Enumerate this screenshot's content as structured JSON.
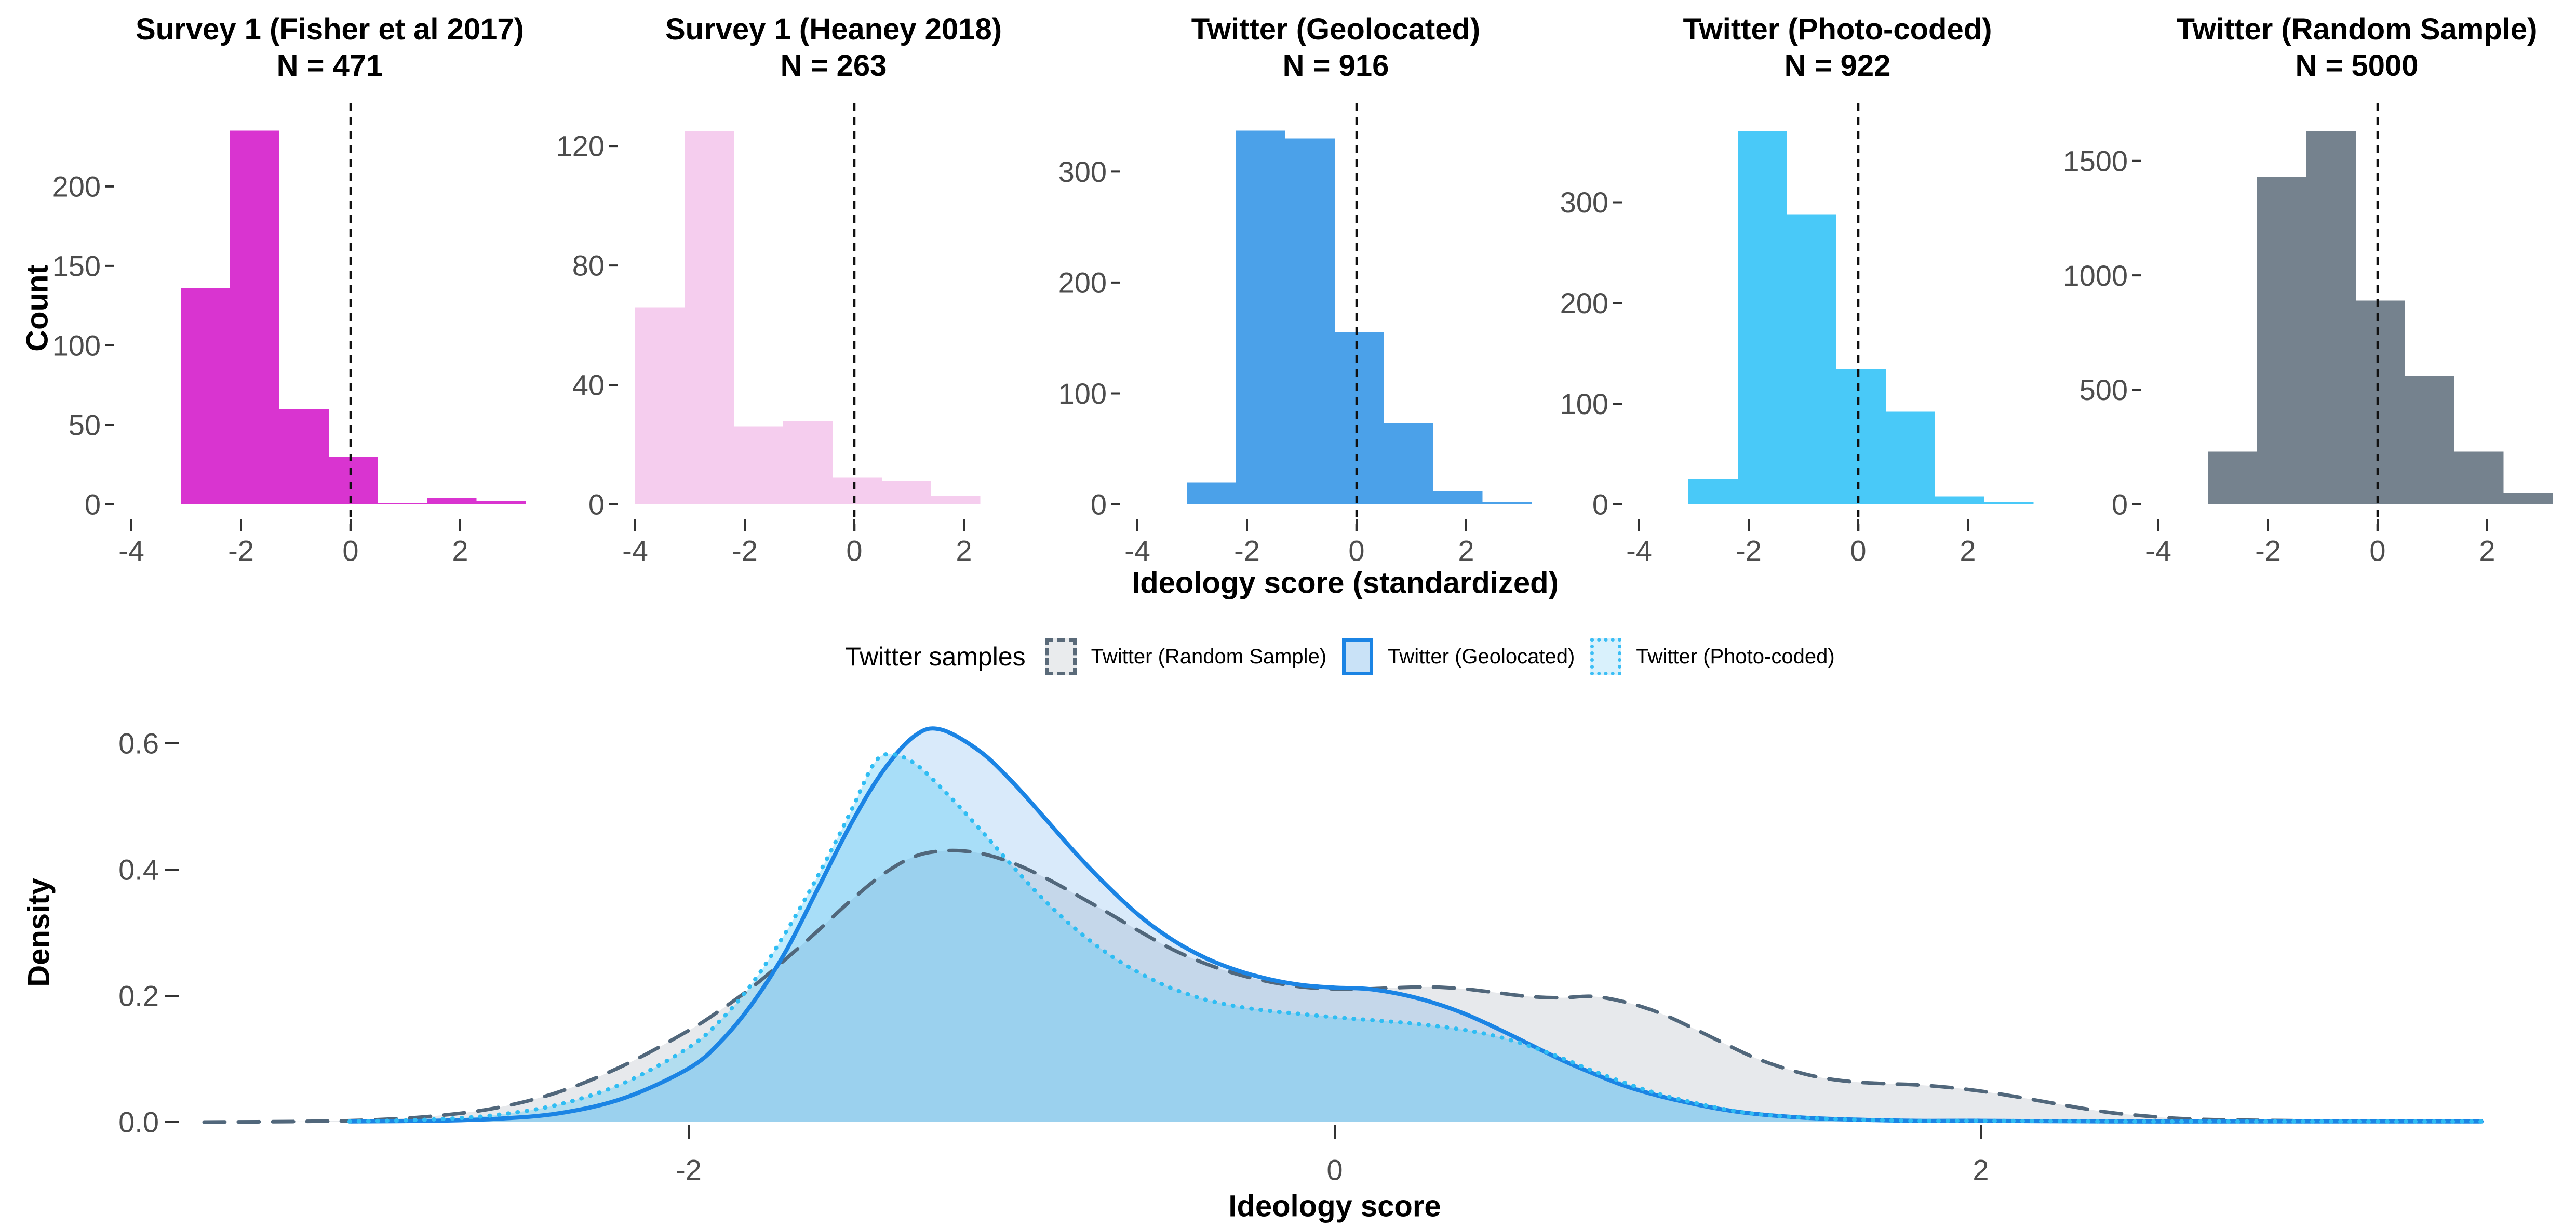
{
  "legend": {
    "title": "Twitter samples",
    "items": [
      {
        "label": "Twitter (Random Sample)",
        "stroke": "#5A6A79",
        "fill": "#E9EBED",
        "border_style": "dashed"
      },
      {
        "label": "Twitter (Geolocated)",
        "stroke": "#1B84E4",
        "fill": "#C9E2F7",
        "border_style": "solid"
      },
      {
        "label": "Twitter (Photo-coded)",
        "stroke": "#3BBEF5",
        "fill": "#D9F1FC",
        "border_style": "dotted"
      }
    ]
  },
  "chart_data": [
    {
      "type": "bar",
      "ylabel": "Count",
      "xlabel": "Ideology score (standardized)",
      "x_ticks": [
        -4,
        -2,
        0,
        2
      ],
      "vline_x": 0,
      "vline_color": "#111111",
      "panels": [
        {
          "title": "Survey 1 (Fisher et al 2017)",
          "n_label": "N = 471",
          "color": "#D934D0",
          "y_ticks": [
            0,
            50,
            100,
            150,
            200
          ],
          "ymax": 247,
          "bin_edges": [
            -3.1,
            -2.2,
            -1.3,
            -0.4,
            0.5,
            1.4,
            2.3,
            3.2
          ],
          "heights": [
            136,
            235,
            60,
            30,
            1,
            4,
            2
          ]
        },
        {
          "title": "Survey 1 (Heaney 2018)",
          "n_label": "N = 263",
          "color": "#F5CDEE",
          "y_ticks": [
            0,
            40,
            80,
            120
          ],
          "ymax": 131.5,
          "bin_edges": [
            -4.0,
            -3.1,
            -2.2,
            -1.3,
            -0.4,
            0.5,
            1.4,
            2.3
          ],
          "heights": [
            66,
            125,
            26,
            28,
            9,
            8,
            3
          ]
        },
        {
          "title": "Twitter (Geolocated)",
          "n_label": "N = 916",
          "color": "#4BA1E9",
          "y_ticks": [
            0,
            100,
            200,
            300
          ],
          "ymax": 354,
          "bin_edges": [
            -3.1,
            -2.2,
            -1.3,
            -0.4,
            0.5,
            1.4,
            2.3,
            3.2
          ],
          "heights": [
            20,
            337,
            330,
            155,
            73,
            12,
            2
          ]
        },
        {
          "title": "Twitter (Photo-coded)",
          "n_label": "N = 922",
          "color": "#49C9F8",
          "y_ticks": [
            0,
            100,
            200,
            300
          ],
          "ymax": 390,
          "bin_edges": [
            -3.1,
            -2.2,
            -1.3,
            -0.4,
            0.5,
            1.4,
            2.3,
            3.2
          ],
          "heights": [
            25,
            371,
            288,
            134,
            92,
            8,
            2
          ]
        },
        {
          "title": "Twitter (Random Sample)",
          "n_label": "N = 5000",
          "color": "#75828E",
          "y_ticks": [
            0,
            500,
            1000,
            1500
          ],
          "ymax": 1715,
          "bin_edges": [
            -3.1,
            -2.2,
            -1.3,
            -0.4,
            0.5,
            1.4,
            2.3,
            3.2
          ],
          "heights": [
            230,
            1430,
            1630,
            890,
            560,
            230,
            50
          ]
        }
      ]
    },
    {
      "type": "area",
      "ylabel": "Density",
      "xlabel": "Ideology score",
      "x_ticks": [
        -2,
        0,
        2
      ],
      "y_ticks": [
        0.0,
        0.2,
        0.4,
        0.6
      ],
      "xlim": [
        -3.9,
        3.85
      ],
      "ylim": [
        0,
        0.63
      ],
      "legend_position": "top",
      "grid": false,
      "series": [
        {
          "name": "Twitter (Random Sample)",
          "stroke": "#51677B",
          "fill": "rgba(105,120,135,0.16)",
          "dash": "40 26",
          "linewidth": 7,
          "points": [
            [
              -3.5,
              0.0
            ],
            [
              -3.2,
              0.001
            ],
            [
              -3.0,
              0.003
            ],
            [
              -2.8,
              0.009
            ],
            [
              -2.6,
              0.022
            ],
            [
              -2.4,
              0.048
            ],
            [
              -2.2,
              0.09
            ],
            [
              -2.0,
              0.145
            ],
            [
              -1.9,
              0.178
            ],
            [
              -1.8,
              0.215
            ],
            [
              -1.7,
              0.258
            ],
            [
              -1.6,
              0.303
            ],
            [
              -1.5,
              0.35
            ],
            [
              -1.4,
              0.392
            ],
            [
              -1.3,
              0.421
            ],
            [
              -1.2,
              0.43
            ],
            [
              -1.1,
              0.426
            ],
            [
              -1.0,
              0.411
            ],
            [
              -0.9,
              0.388
            ],
            [
              -0.8,
              0.36
            ],
            [
              -0.7,
              0.331
            ],
            [
              -0.6,
              0.301
            ],
            [
              -0.5,
              0.273
            ],
            [
              -0.4,
              0.251
            ],
            [
              -0.3,
              0.234
            ],
            [
              -0.2,
              0.222
            ],
            [
              -0.1,
              0.214
            ],
            [
              0.0,
              0.211
            ],
            [
              0.1,
              0.211
            ],
            [
              0.2,
              0.213
            ],
            [
              0.3,
              0.214
            ],
            [
              0.4,
              0.211
            ],
            [
              0.5,
              0.205
            ],
            [
              0.6,
              0.199
            ],
            [
              0.7,
              0.197
            ],
            [
              0.8,
              0.199
            ],
            [
              0.9,
              0.19
            ],
            [
              1.0,
              0.174
            ],
            [
              1.1,
              0.151
            ],
            [
              1.2,
              0.126
            ],
            [
              1.3,
              0.102
            ],
            [
              1.4,
              0.084
            ],
            [
              1.5,
              0.071
            ],
            [
              1.6,
              0.064
            ],
            [
              1.7,
              0.061
            ],
            [
              1.8,
              0.059
            ],
            [
              1.9,
              0.055
            ],
            [
              2.0,
              0.049
            ],
            [
              2.1,
              0.041
            ],
            [
              2.2,
              0.032
            ],
            [
              2.3,
              0.023
            ],
            [
              2.4,
              0.015
            ],
            [
              2.5,
              0.01
            ],
            [
              2.6,
              0.006
            ],
            [
              2.7,
              0.004
            ],
            [
              2.8,
              0.003
            ],
            [
              3.0,
              0.002
            ],
            [
              3.2,
              0.001
            ],
            [
              3.55,
              0.001
            ]
          ]
        },
        {
          "name": "Twitter (Geolocated)",
          "stroke": "#1B84E4",
          "fill": "rgba(27,132,228,0.17)",
          "dash": "",
          "linewidth": 8,
          "points": [
            [
              -3.05,
              0.001
            ],
            [
              -2.8,
              0.002
            ],
            [
              -2.6,
              0.005
            ],
            [
              -2.4,
              0.014
            ],
            [
              -2.2,
              0.038
            ],
            [
              -2.0,
              0.085
            ],
            [
              -1.9,
              0.128
            ],
            [
              -1.8,
              0.19
            ],
            [
              -1.7,
              0.27
            ],
            [
              -1.6,
              0.37
            ],
            [
              -1.5,
              0.47
            ],
            [
              -1.4,
              0.555
            ],
            [
              -1.3,
              0.612
            ],
            [
              -1.22,
              0.622
            ],
            [
              -1.1,
              0.588
            ],
            [
              -1.0,
              0.54
            ],
            [
              -0.9,
              0.483
            ],
            [
              -0.8,
              0.425
            ],
            [
              -0.7,
              0.372
            ],
            [
              -0.6,
              0.325
            ],
            [
              -0.5,
              0.288
            ],
            [
              -0.4,
              0.26
            ],
            [
              -0.3,
              0.24
            ],
            [
              -0.2,
              0.226
            ],
            [
              -0.1,
              0.217
            ],
            [
              0.0,
              0.213
            ],
            [
              0.1,
              0.211
            ],
            [
              0.2,
              0.203
            ],
            [
              0.3,
              0.19
            ],
            [
              0.4,
              0.172
            ],
            [
              0.5,
              0.149
            ],
            [
              0.6,
              0.124
            ],
            [
              0.7,
              0.099
            ],
            [
              0.8,
              0.077
            ],
            [
              0.9,
              0.057
            ],
            [
              1.0,
              0.042
            ],
            [
              1.1,
              0.03
            ],
            [
              1.2,
              0.02
            ],
            [
              1.3,
              0.013
            ],
            [
              1.45,
              0.007
            ],
            [
              1.6,
              0.004
            ],
            [
              1.8,
              0.002
            ],
            [
              2.0,
              0.002
            ],
            [
              2.4,
              0.001
            ],
            [
              2.8,
              0.001
            ],
            [
              3.2,
              0.001
            ],
            [
              3.55,
              0.001
            ]
          ]
        },
        {
          "name": "Twitter (Photo-coded)",
          "stroke": "#2FBDF3",
          "fill": "rgba(70,197,246,0.33)",
          "dash": "1 17",
          "linewidth": 8,
          "points": [
            [
              -3.05,
              0.001
            ],
            [
              -2.8,
              0.004
            ],
            [
              -2.6,
              0.011
            ],
            [
              -2.4,
              0.028
            ],
            [
              -2.2,
              0.062
            ],
            [
              -2.0,
              0.118
            ],
            [
              -1.9,
              0.162
            ],
            [
              -1.8,
              0.222
            ],
            [
              -1.7,
              0.3
            ],
            [
              -1.6,
              0.39
            ],
            [
              -1.5,
              0.49
            ],
            [
              -1.43,
              0.565
            ],
            [
              -1.38,
              0.583
            ],
            [
              -1.3,
              0.568
            ],
            [
              -1.2,
              0.52
            ],
            [
              -1.1,
              0.465
            ],
            [
              -1.0,
              0.407
            ],
            [
              -0.9,
              0.352
            ],
            [
              -0.8,
              0.305
            ],
            [
              -0.7,
              0.266
            ],
            [
              -0.6,
              0.235
            ],
            [
              -0.5,
              0.211
            ],
            [
              -0.4,
              0.194
            ],
            [
              -0.3,
              0.183
            ],
            [
              -0.2,
              0.176
            ],
            [
              -0.1,
              0.171
            ],
            [
              0.0,
              0.166
            ],
            [
              0.1,
              0.162
            ],
            [
              0.2,
              0.158
            ],
            [
              0.3,
              0.153
            ],
            [
              0.4,
              0.146
            ],
            [
              0.5,
              0.136
            ],
            [
              0.6,
              0.121
            ],
            [
              0.7,
              0.102
            ],
            [
              0.8,
              0.081
            ],
            [
              0.9,
              0.062
            ],
            [
              1.0,
              0.045
            ],
            [
              1.1,
              0.032
            ],
            [
              1.2,
              0.021
            ],
            [
              1.3,
              0.013
            ],
            [
              1.45,
              0.007
            ],
            [
              1.6,
              0.004
            ],
            [
              1.8,
              0.002
            ],
            [
              2.0,
              0.002
            ],
            [
              2.4,
              0.001
            ],
            [
              2.8,
              0.001
            ],
            [
              3.2,
              0.001
            ],
            [
              3.55,
              0.001
            ]
          ]
        }
      ]
    }
  ]
}
